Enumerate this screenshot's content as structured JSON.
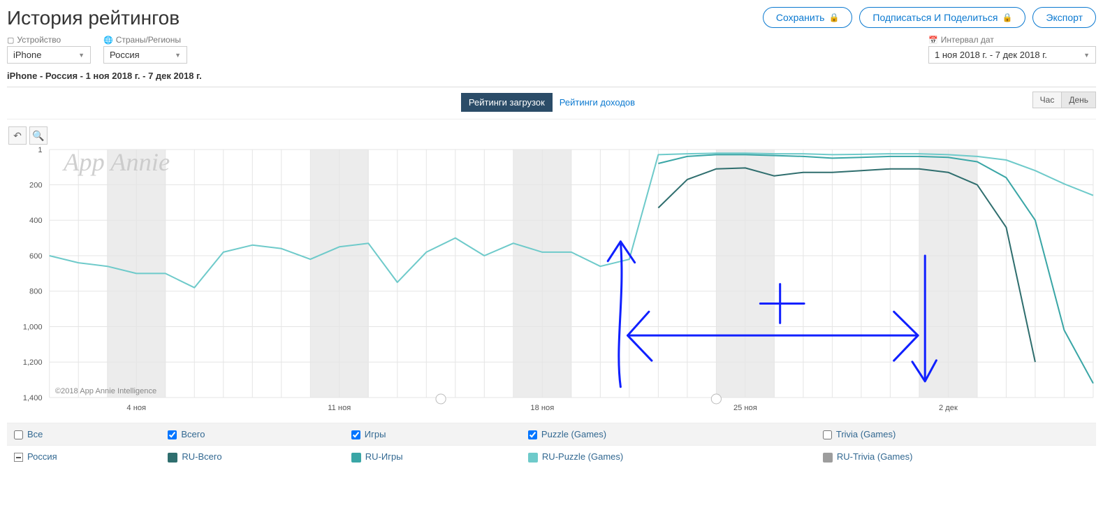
{
  "header": {
    "title": "История рейтингов",
    "buttons": {
      "save": "Сохранить",
      "subscribe": "Подписаться И Поделиться",
      "export": "Экспорт"
    }
  },
  "filters": {
    "device": {
      "label": "Устройство",
      "value": "iPhone"
    },
    "country": {
      "label": "Страны/Регионы",
      "value": "Россия"
    },
    "dates": {
      "label": "Интервал дат",
      "value": "1 ноя 2018 г. - 7 дек 2018 г."
    }
  },
  "summary": "iPhone - Россия - 1 ноя 2018 г. - 7 дек 2018 г.",
  "tabs": {
    "downloads": "Рейтинги загрузок",
    "revenue": "Рейтинги доходов"
  },
  "time_seg": {
    "hour": "Час",
    "day": "День"
  },
  "chart": {
    "watermark": "App Annie",
    "copyright": "©2018 App Annie Intelligence",
    "y_ticks": [
      1,
      200,
      400,
      600,
      800,
      1000,
      1200,
      1400
    ],
    "y_tick_labels": [
      "1",
      "200",
      "400",
      "600",
      "800",
      "1,000",
      "1,200",
      "1,400"
    ],
    "x_major": [
      "4 ноя",
      "11 ноя",
      "18 ноя",
      "25 ноя",
      "2 дек"
    ],
    "x_major_idx": [
      3,
      10,
      17,
      24,
      31
    ],
    "n_days": 37,
    "weekend_start_idx": [
      2,
      9,
      16,
      23,
      30
    ],
    "colors": {
      "ru_all": "#2f6e6e",
      "ru_games": "#3aa6a6",
      "ru_puzzle": "#6ecaca",
      "ru_trivia": "#9d9d9d",
      "grid": "#e5e5e5",
      "bg": "#ffffff",
      "annot": "#1020ff"
    },
    "series": {
      "ru_puzzle": [
        600,
        640,
        660,
        700,
        700,
        780,
        580,
        540,
        560,
        620,
        550,
        530,
        750,
        580,
        500,
        600,
        530,
        580,
        580,
        660,
        620,
        30,
        25,
        22,
        22,
        25,
        25,
        30,
        28,
        25,
        25,
        30,
        40,
        60,
        120,
        195,
        260
      ],
      "ru_games": [
        null,
        null,
        null,
        null,
        null,
        null,
        null,
        null,
        null,
        null,
        null,
        null,
        null,
        null,
        null,
        null,
        null,
        null,
        null,
        null,
        null,
        80,
        40,
        30,
        30,
        35,
        40,
        50,
        45,
        40,
        40,
        45,
        70,
        160,
        400,
        1020,
        1320
      ],
      "ru_all": [
        null,
        null,
        null,
        null,
        null,
        null,
        null,
        null,
        null,
        null,
        null,
        null,
        null,
        null,
        null,
        null,
        null,
        null,
        null,
        null,
        null,
        330,
        170,
        110,
        105,
        150,
        130,
        130,
        120,
        110,
        110,
        130,
        200,
        440,
        1200,
        null,
        null
      ]
    }
  },
  "legend": {
    "all": "Bce",
    "totals": {
      "all": "Всего",
      "games": "Игры",
      "puzzle": "Puzzle (Games)",
      "trivia": "Trivia (Games)"
    },
    "russia": "Россия",
    "ru": {
      "all": "RU-Всего",
      "games": "RU-Игры",
      "puzzle": "RU-Puzzle (Games)",
      "trivia": "RU-Trivia (Games)"
    }
  }
}
